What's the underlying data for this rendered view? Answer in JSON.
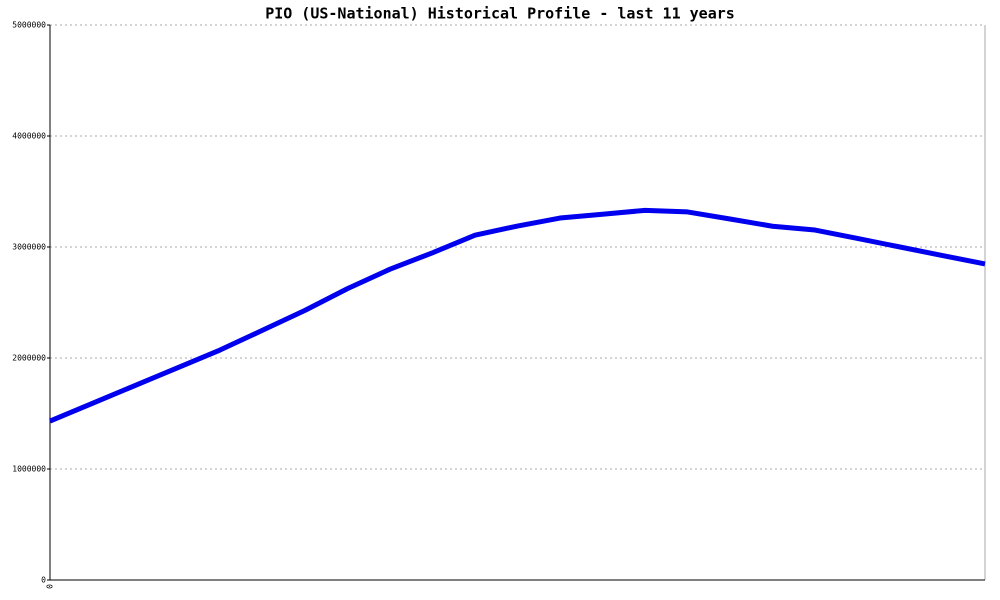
{
  "chart_data": {
    "type": "line",
    "title": "PIO (US-National) Historical Profile - last 11 years",
    "categories": [
      "0",
      null,
      null,
      null,
      null,
      null,
      null,
      null,
      null,
      null,
      null,
      null,
      null,
      null,
      null,
      null,
      null,
      null,
      null,
      null,
      null,
      null,
      null
    ],
    "series": [
      {
        "name": "PIO",
        "color": "#0000ee",
        "values": [
          1432000,
          1592000,
          1752000,
          1912000,
          2072000,
          2250000,
          2429000,
          2625000,
          2800000,
          2948000,
          3106000,
          3189000,
          3261000,
          3295000,
          3330000,
          3316000,
          3252000,
          3187000,
          3153000,
          3077000,
          3000000,
          2923000,
          2847000
        ]
      }
    ],
    "ylim": [
      0,
      5000000
    ],
    "yticks": [
      0,
      1000000,
      2000000,
      3000000,
      4000000,
      5000000
    ],
    "grid": true
  }
}
